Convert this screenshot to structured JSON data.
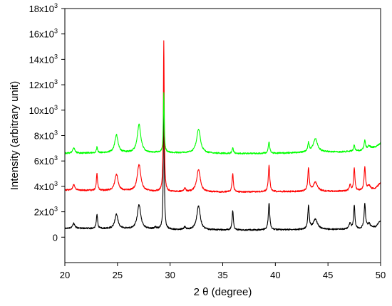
{
  "chart_data": {
    "type": "line",
    "title": "",
    "xlabel": "2 θ (degree)",
    "ylabel": "Intensity (arbitrary unit)",
    "xlim": [
      20,
      50
    ],
    "ylim": [
      -2000,
      18000
    ],
    "grid": false,
    "legend": "none",
    "x_ticks": [
      20,
      25,
      30,
      35,
      40,
      45,
      50
    ],
    "x_tick_labels": [
      "20",
      "25",
      "30",
      "35",
      "40",
      "45",
      "50"
    ],
    "y_ticks": [
      0,
      2000,
      4000,
      6000,
      8000,
      10000,
      12000,
      14000,
      16000,
      18000
    ],
    "y_tick_labels": [
      {
        "base": "0",
        "exp": ""
      },
      {
        "base": "2x10",
        "exp": "3"
      },
      {
        "base": "4x10",
        "exp": "3"
      },
      {
        "base": "6x10",
        "exp": "3"
      },
      {
        "base": "8x10",
        "exp": "3"
      },
      {
        "base": "10x10",
        "exp": "3"
      },
      {
        "base": "12x10",
        "exp": "3"
      },
      {
        "base": "14x10",
        "exp": "3"
      },
      {
        "base": "16x10",
        "exp": "3"
      },
      {
        "base": "18x10",
        "exp": "3"
      }
    ],
    "series": [
      {
        "color": "#000000",
        "baseline": [
          [
            20,
            700
          ],
          [
            25,
            650
          ],
          [
            28,
            620
          ],
          [
            30,
            600
          ],
          [
            33,
            560
          ],
          [
            37,
            560
          ],
          [
            40,
            580
          ],
          [
            45,
            600
          ],
          [
            48,
            650
          ],
          [
            49.5,
            800
          ],
          [
            50,
            1300
          ]
        ],
        "peaks": [
          {
            "x": 20.85,
            "h": 400,
            "w": 0.12
          },
          {
            "x": 23.05,
            "h": 1150,
            "w": 0.07
          },
          {
            "x": 24.9,
            "h": 1150,
            "w": 0.18
          },
          {
            "x": 27.05,
            "h": 1900,
            "w": 0.2
          },
          {
            "x": 28.6,
            "h": 150,
            "w": 0.12
          },
          {
            "x": 29.4,
            "h": 10600,
            "w": 0.05
          },
          {
            "x": 31.4,
            "h": 200,
            "w": 0.1
          },
          {
            "x": 32.7,
            "h": 1900,
            "w": 0.2
          },
          {
            "x": 35.95,
            "h": 1550,
            "w": 0.07
          },
          {
            "x": 39.4,
            "h": 2100,
            "w": 0.08
          },
          {
            "x": 43.15,
            "h": 1850,
            "w": 0.08
          },
          {
            "x": 43.8,
            "h": 800,
            "w": 0.25
          },
          {
            "x": 47.1,
            "h": 500,
            "w": 0.1
          },
          {
            "x": 47.5,
            "h": 1850,
            "w": 0.07
          },
          {
            "x": 48.5,
            "h": 1900,
            "w": 0.08
          },
          {
            "x": 48.9,
            "h": 300,
            "w": 0.15
          }
        ]
      },
      {
        "color": "#ff0000",
        "baseline": [
          [
            20,
            3700
          ],
          [
            25,
            3650
          ],
          [
            28,
            3600
          ],
          [
            30,
            3580
          ],
          [
            33,
            3550
          ],
          [
            37,
            3560
          ],
          [
            40,
            3580
          ],
          [
            45,
            3600
          ],
          [
            48,
            3650
          ],
          [
            49.5,
            3800
          ],
          [
            50,
            4300
          ]
        ],
        "peaks": [
          {
            "x": 20.85,
            "h": 450,
            "w": 0.12
          },
          {
            "x": 23.05,
            "h": 1300,
            "w": 0.07
          },
          {
            "x": 24.9,
            "h": 1300,
            "w": 0.18
          },
          {
            "x": 27.05,
            "h": 2100,
            "w": 0.2
          },
          {
            "x": 29.4,
            "h": 11900,
            "w": 0.05
          },
          {
            "x": 31.4,
            "h": 250,
            "w": 0.1
          },
          {
            "x": 32.7,
            "h": 1800,
            "w": 0.2
          },
          {
            "x": 35.95,
            "h": 1450,
            "w": 0.07
          },
          {
            "x": 39.4,
            "h": 2100,
            "w": 0.08
          },
          {
            "x": 43.15,
            "h": 1800,
            "w": 0.08
          },
          {
            "x": 43.8,
            "h": 700,
            "w": 0.25
          },
          {
            "x": 47.1,
            "h": 450,
            "w": 0.1
          },
          {
            "x": 47.5,
            "h": 1800,
            "w": 0.07
          },
          {
            "x": 48.5,
            "h": 1800,
            "w": 0.08
          },
          {
            "x": 48.9,
            "h": 300,
            "w": 0.15
          }
        ]
      },
      {
        "color": "#00ff00",
        "baseline": [
          [
            20,
            6600
          ],
          [
            25,
            6650
          ],
          [
            28,
            6650
          ],
          [
            30,
            6650
          ],
          [
            33,
            6600
          ],
          [
            37,
            6580
          ],
          [
            40,
            6600
          ],
          [
            44,
            6700
          ],
          [
            46,
            6700
          ],
          [
            48,
            6800
          ],
          [
            49.5,
            7100
          ],
          [
            50,
            7400
          ]
        ],
        "peaks": [
          {
            "x": 20.85,
            "h": 400,
            "w": 0.12
          },
          {
            "x": 23.05,
            "h": 450,
            "w": 0.07
          },
          {
            "x": 24.9,
            "h": 1400,
            "w": 0.18
          },
          {
            "x": 27.05,
            "h": 2200,
            "w": 0.2
          },
          {
            "x": 29.4,
            "h": 4700,
            "w": 0.05
          },
          {
            "x": 32.7,
            "h": 1900,
            "w": 0.22
          },
          {
            "x": 35.95,
            "h": 450,
            "w": 0.07
          },
          {
            "x": 39.4,
            "h": 900,
            "w": 0.08
          },
          {
            "x": 43.15,
            "h": 700,
            "w": 0.08
          },
          {
            "x": 43.8,
            "h": 1050,
            "w": 0.25
          },
          {
            "x": 47.5,
            "h": 500,
            "w": 0.07
          },
          {
            "x": 48.5,
            "h": 700,
            "w": 0.08
          },
          {
            "x": 48.9,
            "h": 200,
            "w": 0.15
          }
        ]
      }
    ]
  }
}
